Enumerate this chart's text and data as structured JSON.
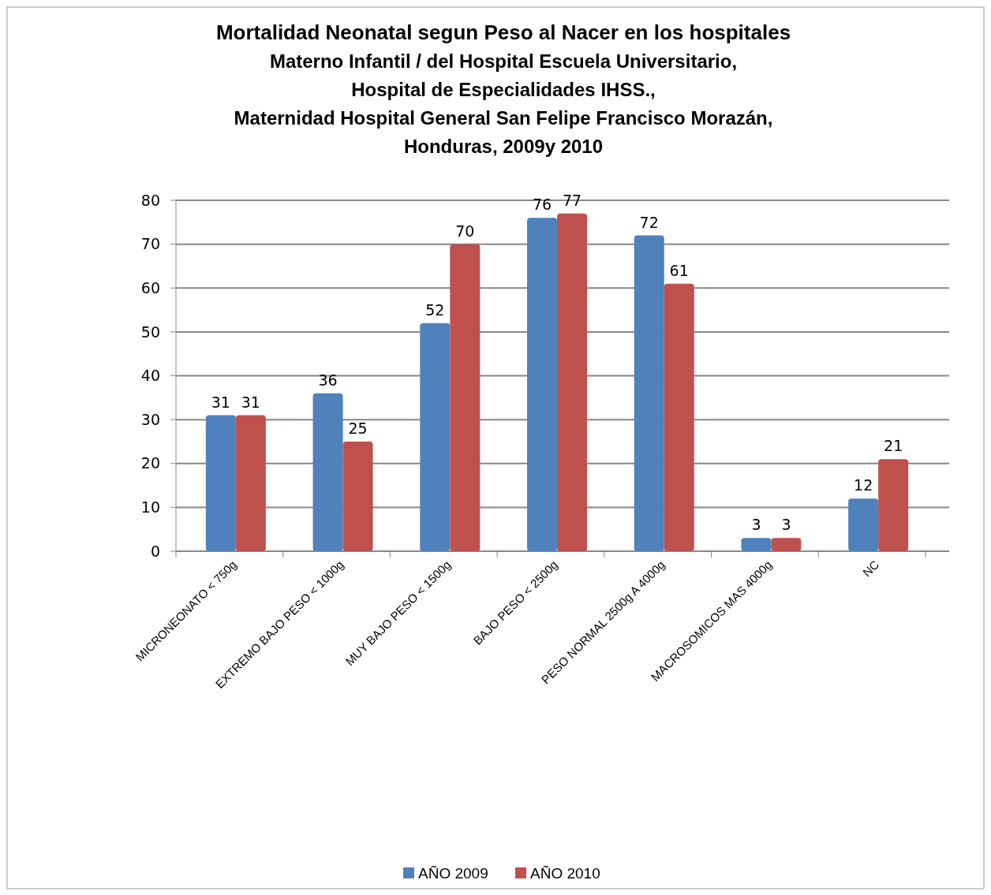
{
  "chart_data": {
    "type": "bar",
    "title": "Mortalidad Neonatal segun Peso al Nacer en los hospitales\nMaterno Infantil / del Hospital Escuela Universitario,\nHospital de Especialidades IHSS.,\nMaternidad Hospital General San Felipe Francisco Morazán,\nHonduras, 2009y 2010",
    "categories": [
      "MICRONEONATO < 750g",
      "EXTREMO BAJO PESO < 1000g",
      "MUY BAJO PESO < 1500g",
      "BAJO PESO < 2500g",
      "PESO NORMAL 2500g A 4000g",
      "MACROSOMICOS MAS 4000g",
      "NC"
    ],
    "series": [
      {
        "name": "AÑO 2009",
        "color": "#4f81bd",
        "values": [
          31,
          36,
          52,
          76,
          72,
          3,
          12
        ]
      },
      {
        "name": "AÑO 2010",
        "color": "#c0504d",
        "values": [
          31,
          25,
          70,
          77,
          61,
          3,
          21
        ]
      }
    ],
    "ylim": [
      0,
      80
    ],
    "yticks": [
      0,
      10,
      20,
      30,
      40,
      50,
      60,
      70,
      80
    ],
    "grid": "y",
    "data_labels": true,
    "legend": "bottom"
  }
}
